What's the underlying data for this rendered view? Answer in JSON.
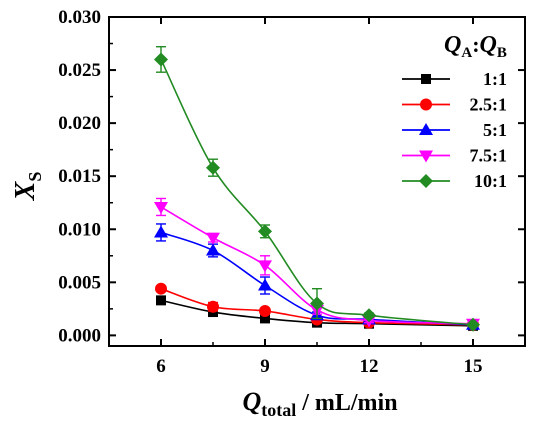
{
  "chart_data": {
    "type": "line",
    "title": "",
    "xlabel": {
      "main": "Q",
      "sub": "total",
      "suffix": " / mL/min"
    },
    "ylabel": {
      "main": "X",
      "sub": "S"
    },
    "xlim": [
      4.5,
      16.5
    ],
    "ylim": [
      -0.001,
      0.03
    ],
    "xticks": [
      "6",
      "9",
      "12",
      "15"
    ],
    "yticks": [
      "0.000",
      "0.005",
      "0.010",
      "0.015",
      "0.020",
      "0.025",
      "0.030"
    ],
    "legend": {
      "position": "top-right",
      "title": {
        "a": "Q",
        "a_sub": "A",
        "sep": ":",
        "b": "Q",
        "b_sub": "B"
      }
    },
    "x": [
      6,
      7.5,
      9,
      10.5,
      12,
      15
    ],
    "series": [
      {
        "name": "1:1",
        "color": "#000000",
        "marker": "square",
        "values": [
          0.0033,
          0.0022,
          0.0016,
          0.0012,
          0.0011,
          0.0009
        ],
        "errors": [
          0.0003,
          0.0002,
          0.0002,
          0.0002,
          0.0001,
          0.0001
        ]
      },
      {
        "name": "2.5:1",
        "color": "#ff0000",
        "marker": "circle",
        "values": [
          0.0044,
          0.0027,
          0.0023,
          0.0015,
          0.0012,
          0.001
        ],
        "errors": [
          0.0002,
          0.0004,
          0.0002,
          0.0002,
          0.0001,
          0.0001
        ]
      },
      {
        "name": "5:1",
        "color": "#0000ff",
        "marker": "triangle-up",
        "values": [
          0.0097,
          0.008,
          0.0047,
          0.0019,
          0.0015,
          0.001
        ],
        "errors": [
          0.0008,
          0.0006,
          0.0008,
          0.0003,
          0.0002,
          0.0001
        ]
      },
      {
        "name": "7.5:1",
        "color": "#ff00ff",
        "marker": "triangle-down",
        "values": [
          0.0121,
          0.0092,
          0.0066,
          0.0024,
          0.0014,
          0.0011
        ],
        "errors": [
          0.0008,
          0.0004,
          0.0009,
          0.0004,
          0.0002,
          0.0001
        ]
      },
      {
        "name": "10:1",
        "color": "#228b22",
        "marker": "diamond",
        "values": [
          0.026,
          0.0158,
          0.0098,
          0.003,
          0.0019,
          0.001
        ],
        "errors": [
          0.0012,
          0.0008,
          0.0006,
          0.0014,
          0.0002,
          0.0001
        ]
      }
    ]
  }
}
